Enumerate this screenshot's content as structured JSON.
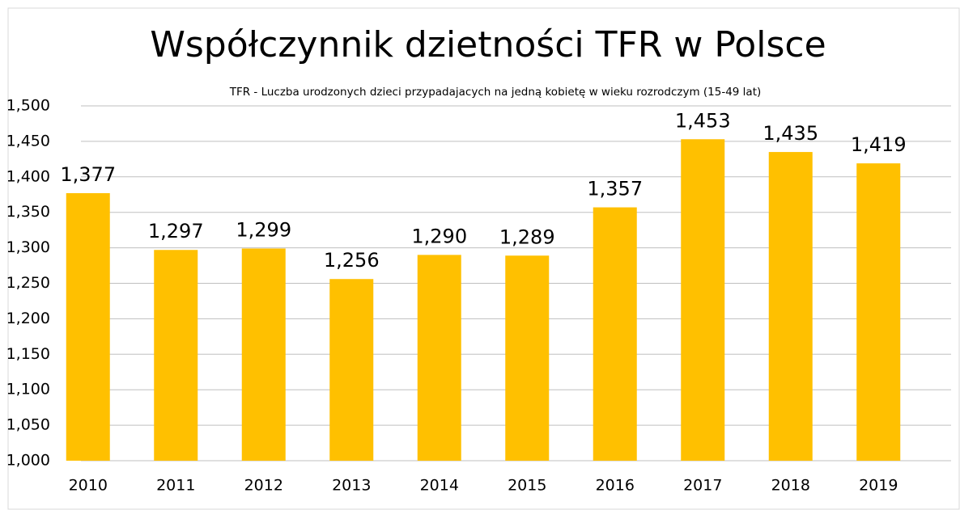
{
  "chart_data": {
    "type": "bar",
    "title": "Współczynnik dzietności TFR w Polsce",
    "subtitle": "TFR - Luczba urodzonych dzieci przypadajacych na jedną kobietę w wieku rozrodczym (15-49 lat)",
    "categories": [
      "2010",
      "2011",
      "2012",
      "2013",
      "2014",
      "2015",
      "2016",
      "2017",
      "2018",
      "2019"
    ],
    "values": [
      1.377,
      1.297,
      1.299,
      1.256,
      1.29,
      1.289,
      1.357,
      1.453,
      1.435,
      1.419
    ],
    "value_labels": [
      "1,377",
      "1,297",
      "1,299",
      "1,256",
      "1,290",
      "1,289",
      "1,357",
      "1,453",
      "1,435",
      "1,419"
    ],
    "color": "#ffc000",
    "ylim": [
      1.0,
      1.5
    ],
    "yticks": [
      {
        "value": 1.0,
        "label": "1,000"
      },
      {
        "value": 1.05,
        "label": "1,050"
      },
      {
        "value": 1.1,
        "label": "1,100"
      },
      {
        "value": 1.15,
        "label": "1,150"
      },
      {
        "value": 1.2,
        "label": "1,200"
      },
      {
        "value": 1.25,
        "label": "1,250"
      },
      {
        "value": 1.3,
        "label": "1,300"
      },
      {
        "value": 1.35,
        "label": "1,350"
      },
      {
        "value": 1.4,
        "label": "1,400"
      },
      {
        "value": 1.45,
        "label": "1,450"
      },
      {
        "value": 1.5,
        "label": "1,500"
      }
    ],
    "grid": true
  }
}
